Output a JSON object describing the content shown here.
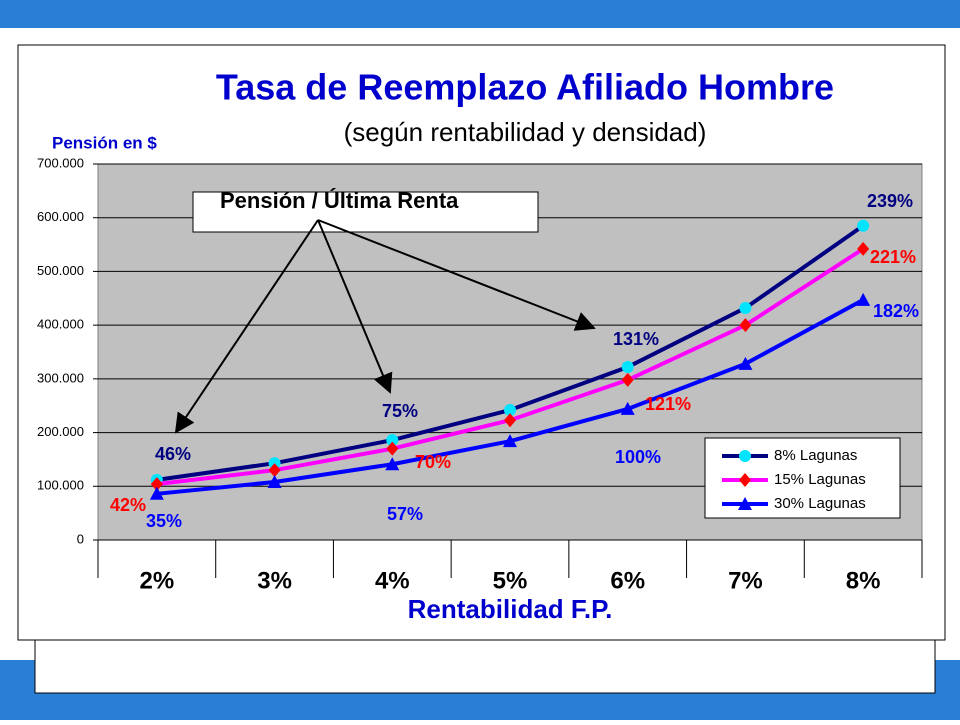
{
  "chart_data": {
    "type": "line",
    "title": "Tasa de Reemplazo Afiliado Hombre",
    "subtitle": "(según rentabilidad y densidad)",
    "y_label": "Pensión en $",
    "x_label": "Rentabilidad F.P.",
    "categories": [
      "2%",
      "3%",
      "4%",
      "5%",
      "6%",
      "7%",
      "8%"
    ],
    "series": [
      {
        "name": "8% Lagunas",
        "color": "#000080",
        "marker_color": "#00e5ff",
        "marker": "circle",
        "values": [
          112000,
          143000,
          186000,
          242000,
          322000,
          432000,
          585000
        ]
      },
      {
        "name": "15% Lagunas",
        "color": "#ff00ff",
        "marker_color": "#ff0000",
        "marker": "diamond",
        "values": [
          104000,
          130000,
          170000,
          223000,
          298000,
          400000,
          542000
        ]
      },
      {
        "name": "30% Lagunas",
        "color": "#0000ff",
        "marker_color": "#0000ff",
        "marker": "triangle",
        "values": [
          86000,
          108000,
          141000,
          184000,
          244000,
          328000,
          447000
        ]
      }
    ],
    "ylim": [
      0,
      700000
    ],
    "yticks": [
      0,
      {
        "value": 100000,
        "label": "100.000"
      },
      {
        "value": 200000,
        "label": "200.000"
      },
      {
        "value": 300000,
        "label": "300.000"
      },
      {
        "value": 400000,
        "label": "400.000"
      },
      {
        "value": 500000,
        "label": "500.000"
      },
      {
        "value": 600000,
        "label": "600.000"
      },
      {
        "value": 700000,
        "label": "700.000"
      }
    ],
    "grid": true,
    "legend": "bottom-right",
    "callout": "Pensión / Última Renta",
    "annotations": [
      {
        "text": "46%",
        "color": "#000080"
      },
      {
        "text": "75%",
        "color": "#000080"
      },
      {
        "text": "131%",
        "color": "#000080"
      },
      {
        "text": "239%",
        "color": "#000080"
      },
      {
        "text": "42%",
        "color": "#ff0000"
      },
      {
        "text": "70%",
        "color": "#ff0000"
      },
      {
        "text": "121%",
        "color": "#ff0000"
      },
      {
        "text": "221%",
        "color": "#ff0000"
      },
      {
        "text": "35%",
        "color": "#0000ff"
      },
      {
        "text": "57%",
        "color": "#0000ff"
      },
      {
        "text": "100%",
        "color": "#0000ff"
      },
      {
        "text": "182%",
        "color": "#0000ff"
      }
    ]
  }
}
